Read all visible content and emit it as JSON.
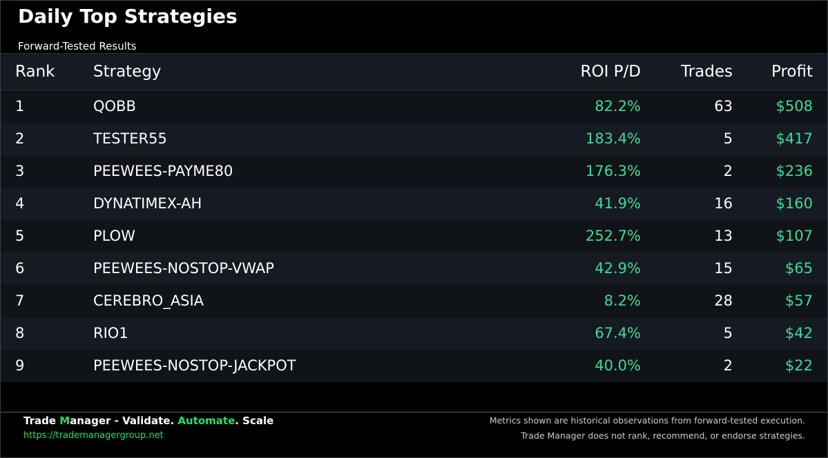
{
  "header": {
    "title": "Daily Top Strategies",
    "subtitle": "Forward-Tested Results"
  },
  "table": {
    "columns": {
      "rank": "Rank",
      "strategy": "Strategy",
      "roi": "ROI P/D",
      "trades": "Trades",
      "profit": "Profit"
    },
    "rows": [
      {
        "rank": "1",
        "strategy": "QOBB",
        "roi": "82.2%",
        "trades": "63",
        "profit": "$508"
      },
      {
        "rank": "2",
        "strategy": "TESTER55",
        "roi": "183.4%",
        "trades": "5",
        "profit": "$417"
      },
      {
        "rank": "3",
        "strategy": "PEEWEES-PAYME80",
        "roi": "176.3%",
        "trades": "2",
        "profit": "$236"
      },
      {
        "rank": "4",
        "strategy": "DYNATIMEX-AH",
        "roi": "41.9%",
        "trades": "16",
        "profit": "$160"
      },
      {
        "rank": "5",
        "strategy": "PLOW",
        "roi": "252.7%",
        "trades": "13",
        "profit": "$107"
      },
      {
        "rank": "6",
        "strategy": "PEEWEES-NOSTOP-VWAP",
        "roi": "42.9%",
        "trades": "15",
        "profit": "$65"
      },
      {
        "rank": "7",
        "strategy": "CEREBRO_ASIA",
        "roi": "8.2%",
        "trades": "28",
        "profit": "$57"
      },
      {
        "rank": "8",
        "strategy": "RIO1",
        "roi": "67.4%",
        "trades": "5",
        "profit": "$42"
      },
      {
        "rank": "9",
        "strategy": "PEEWEES-NOSTOP-JACKPOT",
        "roi": "40.0%",
        "trades": "2",
        "profit": "$22"
      }
    ]
  },
  "footer": {
    "brand": {
      "part1": "Trade ",
      "part2": "M",
      "part3": "anager - Validate. ",
      "part4": "Automate",
      "part5": ". Scale"
    },
    "url": "https://trademanagergroup.net",
    "disclaimer_line1": "Metrics shown are historical observations from forward-tested execution.",
    "disclaimer_line2": "Trade Manager does not rank, recommend, or endorse strategies."
  },
  "colors": {
    "positive": "#3ddc97",
    "brand_accent": "#22e06b",
    "background": "#000000"
  }
}
